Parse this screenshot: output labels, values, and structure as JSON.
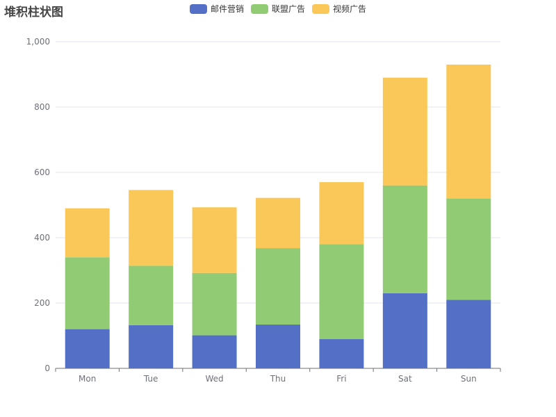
{
  "chart_data": {
    "type": "bar",
    "stacked": true,
    "title": "堆积柱状图",
    "categories": [
      "Mon",
      "Tue",
      "Wed",
      "Thu",
      "Fri",
      "Sat",
      "Sun"
    ],
    "series": [
      {
        "name": "邮件营销",
        "color": "#5470c6",
        "values": [
          120,
          132,
          101,
          134,
          90,
          230,
          210
        ]
      },
      {
        "name": "联盟广告",
        "color": "#91cc75",
        "values": [
          220,
          182,
          191,
          234,
          290,
          330,
          310
        ]
      },
      {
        "name": "视频广告",
        "color": "#fac858",
        "values": [
          150,
          232,
          201,
          154,
          190,
          330,
          410
        ]
      }
    ],
    "yticks": [
      "0",
      "200",
      "400",
      "600",
      "800",
      "1,000"
    ],
    "ylim": [
      0,
      1000
    ],
    "grid": true,
    "legend_position": "top-center",
    "xlabel": "",
    "ylabel": ""
  }
}
